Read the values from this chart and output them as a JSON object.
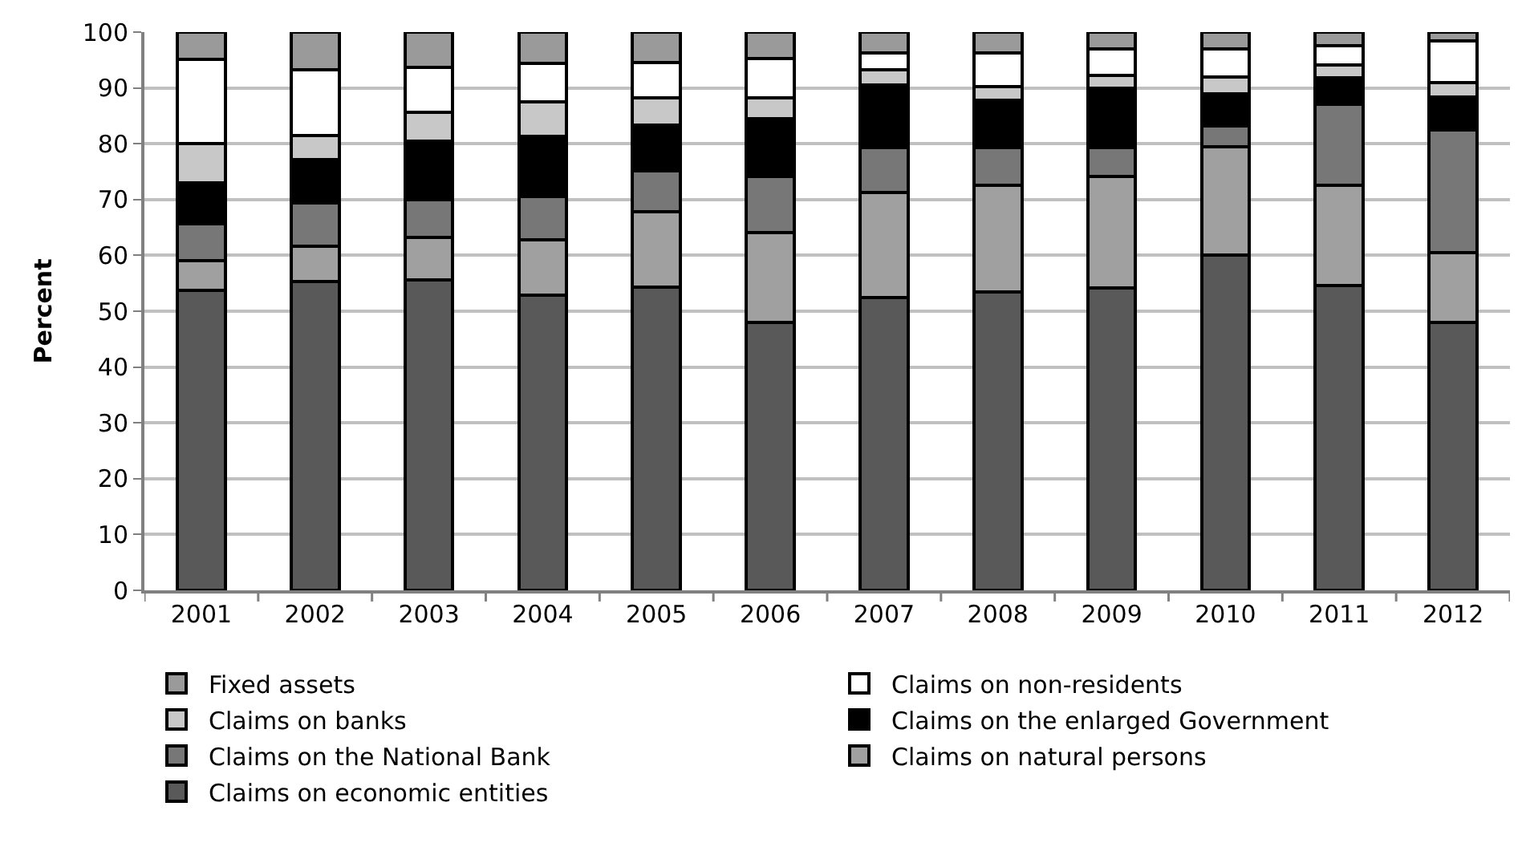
{
  "chart_data": {
    "type": "bar",
    "stacked": true,
    "ylabel": "Percent",
    "categories": [
      "2001",
      "2002",
      "2003",
      "2004",
      "2005",
      "2006",
      "2007",
      "2008",
      "2009",
      "2010",
      "2011",
      "2012"
    ],
    "series": [
      {
        "name": "Claims on economic entities",
        "color": "#595959",
        "values": [
          53.8,
          55.3,
          55.6,
          52.9,
          54.3,
          48.0,
          52.5,
          53.4,
          54.1,
          60.0,
          54.6,
          48.0
        ]
      },
      {
        "name": "Claims on natural persons",
        "color": "#a0a0a0",
        "values": [
          5.3,
          6.3,
          7.6,
          9.9,
          13.5,
          16.1,
          18.7,
          19.2,
          20.1,
          19.4,
          18.0,
          12.5
        ]
      },
      {
        "name": "Claims on the National Bank",
        "color": "#777777",
        "values": [
          6.5,
          7.8,
          6.8,
          7.7,
          7.4,
          10.0,
          8.1,
          6.7,
          5.1,
          3.8,
          14.4,
          22.0
        ]
      },
      {
        "name": "Claims on the enlarged Government",
        "color": "#000000",
        "values": [
          7.4,
          7.7,
          10.4,
          10.8,
          8.2,
          10.4,
          11.2,
          8.5,
          10.6,
          5.7,
          4.8,
          5.9
        ]
      },
      {
        "name": "Claims on banks",
        "color": "#c8c8c8",
        "values": [
          7.1,
          4.4,
          5.2,
          6.2,
          4.8,
          3.7,
          2.8,
          2.5,
          2.3,
          3.1,
          2.3,
          2.6
        ]
      },
      {
        "name": "Claims on non-residents",
        "color": "#ffffff",
        "values": [
          15.0,
          11.7,
          8.1,
          6.9,
          6.4,
          7.1,
          2.9,
          6.0,
          4.8,
          5.0,
          3.5,
          7.4
        ]
      },
      {
        "name": "Fixed assets",
        "color": "#9a9a9a",
        "values": [
          4.9,
          6.8,
          6.3,
          5.6,
          5.4,
          4.7,
          3.8,
          3.7,
          3.0,
          3.0,
          2.4,
          1.6
        ]
      }
    ],
    "ylim": [
      0,
      100
    ],
    "yticks": [
      0,
      10,
      20,
      30,
      40,
      50,
      60,
      70,
      80,
      90,
      100
    ],
    "grid": "y",
    "legend": "bottom"
  }
}
